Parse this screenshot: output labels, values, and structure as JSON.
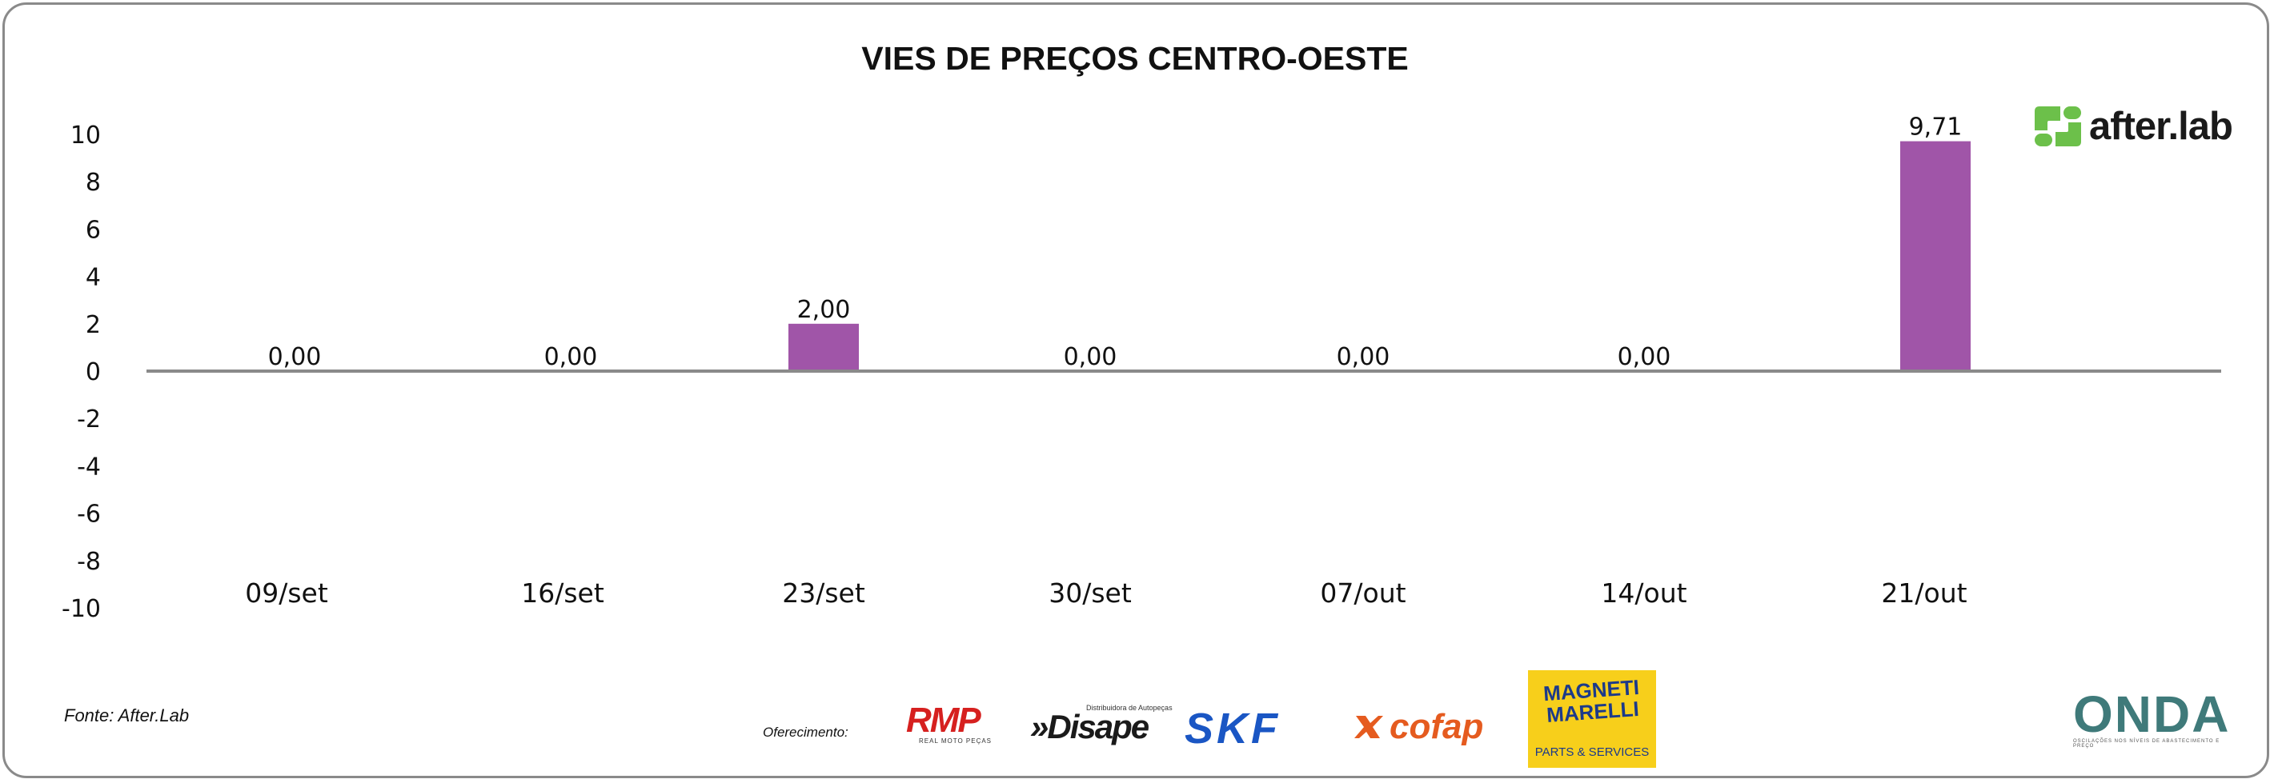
{
  "chart_data": {
    "type": "bar",
    "title": "VIES DE PREÇOS CENTRO-OESTE",
    "categories": [
      "09/set",
      "16/set",
      "23/set",
      "30/set",
      "07/out",
      "14/out",
      "21/out"
    ],
    "values": [
      0.0,
      0.0,
      2.0,
      0.0,
      0.0,
      0.0,
      9.71
    ],
    "data_labels": [
      "0,00",
      "0,00",
      "2,00",
      "0,00",
      "0,00",
      "0,00",
      "9,71"
    ],
    "ylim": [
      -10,
      10
    ],
    "yticks": [
      "10",
      "8",
      "6",
      "4",
      "2",
      "0",
      "-2",
      "-4",
      "-6",
      "-8",
      "-10"
    ],
    "bar_color": "#a055a8",
    "grid": false,
    "legend": "none"
  },
  "footer": {
    "source": "Fonte: After.Lab",
    "offer_label": "Oferecimento:"
  },
  "logos": {
    "afterlab": "after.lab",
    "rmp": "RMP",
    "rmp_sub": "REAL MOTO PEÇAS",
    "disape": "»Disape",
    "disape_sub": "Distribuidora de Autopeças",
    "skf": "SKF",
    "cofap": "cofap",
    "magneti": "MAGNETI MARELLI",
    "magneti_sub": "PARTS & SERVICES",
    "onda": "ONDA",
    "onda_sub": "OSCILAÇÕES NOS NÍVEIS DE ABASTECIMENTO E PREÇO"
  },
  "colors": {
    "afterlab_green": "#6cc04a",
    "axis": "#8a8a8a",
    "skf_blue": "#1a56c4",
    "cofap_orange": "#e55b1f",
    "rmp_red": "#d6201f",
    "magneti_yellow": "#f7cf1b"
  }
}
